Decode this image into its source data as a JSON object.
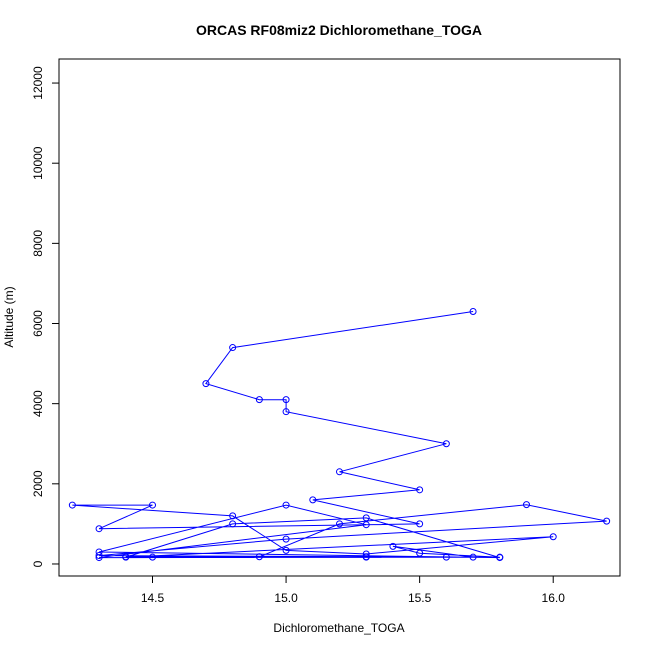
{
  "chart_data": {
    "type": "line",
    "title": "ORCAS RF08miz2 Dichloromethane_TOGA",
    "xlabel": "Dichloromethane_TOGA",
    "ylabel": "Altitude (m)",
    "xlim": [
      14.15,
      16.25
    ],
    "ylim": [
      -300,
      12600
    ],
    "xticks": [
      14.5,
      15.0,
      15.5,
      16.0
    ],
    "yticks": [
      0,
      2000,
      4000,
      6000,
      8000,
      10000,
      12000
    ],
    "grid": false,
    "line_color": "#0000ff",
    "marker": "open-circle",
    "series": [
      {
        "x": [
          15.7,
          14.8,
          14.7,
          14.9,
          15.0,
          15.0,
          15.6,
          15.2,
          15.5,
          15.1,
          15.5,
          14.3,
          14.5,
          14.2,
          14.8,
          15.0,
          15.3,
          16.0,
          14.4,
          14.8,
          15.3,
          15.8,
          14.3,
          15.0,
          15.3,
          14.3,
          15.6,
          14.4,
          15.3,
          14.9,
          15.2,
          15.9,
          16.2,
          15.0,
          14.3,
          15.7,
          15.4,
          15.5,
          15.8,
          14.5,
          15.3
        ],
        "y": [
          6300,
          5400,
          4500,
          4100,
          4100,
          3800,
          3000,
          2300,
          1850,
          1600,
          1000,
          880,
          1470,
          1470,
          1200,
          340,
          250,
          680,
          170,
          1000,
          1150,
          160,
          300,
          1470,
          980,
          160,
          170,
          180,
          170,
          180,
          1000,
          1480,
          1070,
          620,
          210,
          170,
          440,
          270,
          170,
          170,
          180
        ]
      }
    ]
  }
}
